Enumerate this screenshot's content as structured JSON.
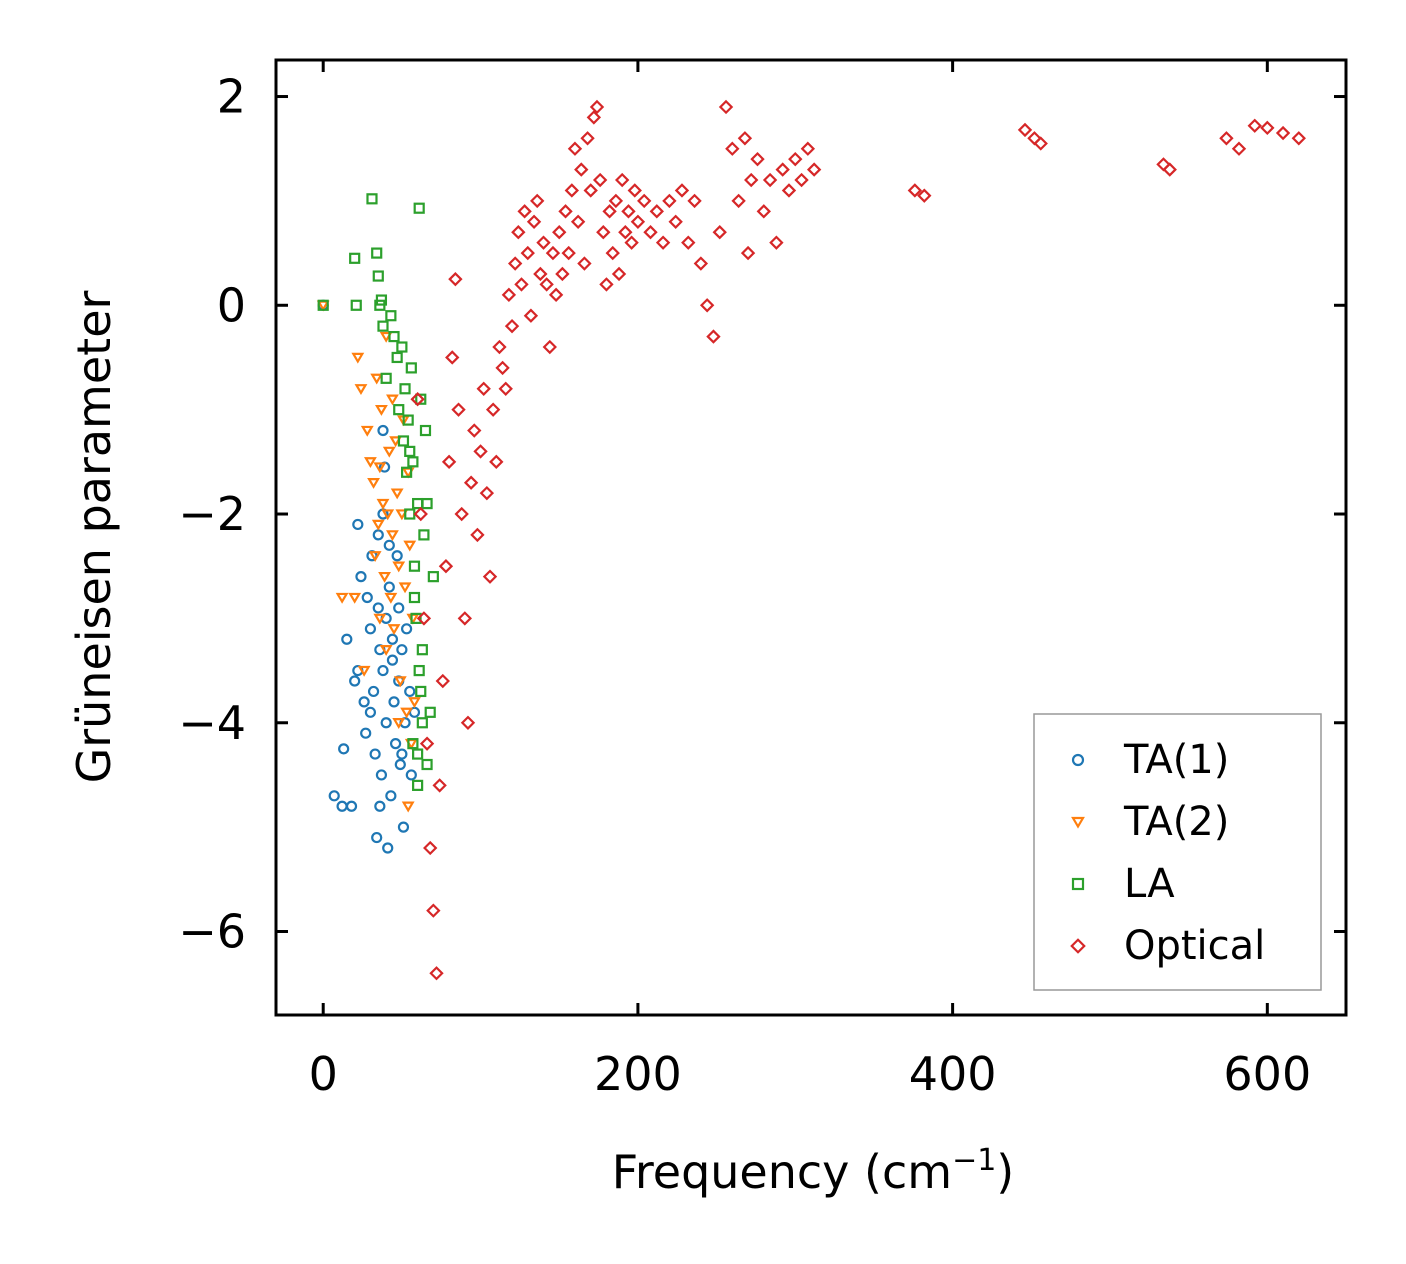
{
  "chart_data": {
    "type": "scatter",
    "title": "",
    "xlabel": "Frequency (cm",
    "xlabel_sup": "−1",
    "xlabel_close": ")",
    "ylabel": "Grüneisen parameter",
    "xlim": [
      -30,
      650
    ],
    "ylim": [
      -6.8,
      2.35
    ],
    "xticks": [
      0,
      200,
      400,
      600
    ],
    "yticks": [
      2,
      0,
      -2,
      -4,
      -6
    ],
    "xtick_labels": [
      "0",
      "200",
      "400",
      "600"
    ],
    "ytick_labels": [
      "2",
      "0",
      "−2",
      "−4",
      "−6"
    ],
    "legend_position": "lower-right",
    "series": [
      {
        "name": "TA(1)",
        "label": "TA(1)",
        "marker": "circle",
        "color": "#1f77b4",
        "points": [
          [
            0,
            0
          ],
          [
            7,
            -4.7
          ],
          [
            12,
            -4.8
          ],
          [
            13,
            -4.25
          ],
          [
            15,
            -3.2
          ],
          [
            18,
            -4.8
          ],
          [
            20,
            -3.6
          ],
          [
            22,
            -2.1
          ],
          [
            22,
            -3.5
          ],
          [
            24,
            -2.6
          ],
          [
            26,
            -3.8
          ],
          [
            27,
            -4.1
          ],
          [
            28,
            -2.8
          ],
          [
            30,
            -3.9
          ],
          [
            30,
            -3.1
          ],
          [
            31,
            -2.4
          ],
          [
            32,
            -3.7
          ],
          [
            33,
            -4.3
          ],
          [
            34,
            -5.1
          ],
          [
            35,
            -2.9
          ],
          [
            36,
            -3.3
          ],
          [
            37,
            -4.5
          ],
          [
            38,
            -3.5
          ],
          [
            38,
            -2.0
          ],
          [
            39,
            -1.55
          ],
          [
            40,
            -4.0
          ],
          [
            40,
            -3.0
          ],
          [
            41,
            -5.2
          ],
          [
            42,
            -2.7
          ],
          [
            43,
            -4.7
          ],
          [
            44,
            -3.4
          ],
          [
            45,
            -3.8
          ],
          [
            46,
            -4.2
          ],
          [
            47,
            -2.4
          ],
          [
            48,
            -3.6
          ],
          [
            49,
            -4.4
          ],
          [
            50,
            -3.3
          ],
          [
            51,
            -5.0
          ],
          [
            52,
            -4.0
          ],
          [
            53,
            -3.1
          ],
          [
            55,
            -3.7
          ],
          [
            56,
            -4.5
          ],
          [
            58,
            -3.9
          ],
          [
            38,
            -1.2
          ],
          [
            35,
            -2.2
          ],
          [
            42,
            -2.3
          ],
          [
            44,
            -3.2
          ],
          [
            48,
            -2.9
          ],
          [
            36,
            -4.8
          ],
          [
            50,
            -4.3
          ]
        ]
      },
      {
        "name": "TA(2)",
        "label": "TA(2)",
        "marker": "triangle",
        "color": "#ff7f0e",
        "points": [
          [
            0,
            0
          ],
          [
            12,
            -2.8
          ],
          [
            20,
            -2.8
          ],
          [
            22,
            -0.5
          ],
          [
            24,
            -0.8
          ],
          [
            26,
            -3.5
          ],
          [
            28,
            -1.2
          ],
          [
            30,
            -1.5
          ],
          [
            32,
            -1.7
          ],
          [
            33,
            -2.4
          ],
          [
            34,
            -0.7
          ],
          [
            35,
            -2.1
          ],
          [
            36,
            -3.0
          ],
          [
            37,
            -1.0
          ],
          [
            38,
            -1.9
          ],
          [
            39,
            -2.6
          ],
          [
            40,
            -3.3
          ],
          [
            41,
            -2.0
          ],
          [
            42,
            -1.4
          ],
          [
            43,
            -2.8
          ],
          [
            44,
            -2.2
          ],
          [
            45,
            -3.1
          ],
          [
            46,
            -1.3
          ],
          [
            47,
            -1.8
          ],
          [
            48,
            -2.5
          ],
          [
            49,
            -3.6
          ],
          [
            50,
            -2.0
          ],
          [
            51,
            -1.1
          ],
          [
            52,
            -2.7
          ],
          [
            53,
            -3.9
          ],
          [
            54,
            -1.6
          ],
          [
            55,
            -2.3
          ],
          [
            56,
            -4.2
          ],
          [
            57,
            -3.0
          ],
          [
            58,
            -3.8
          ],
          [
            40,
            -0.3
          ],
          [
            44,
            -0.9
          ],
          [
            54,
            -4.8
          ],
          [
            36,
            -1.55
          ],
          [
            48,
            -4.0
          ]
        ]
      },
      {
        "name": "LA",
        "label": "LA",
        "marker": "square",
        "color": "#2ca02c",
        "points": [
          [
            0,
            0
          ],
          [
            20,
            0.45
          ],
          [
            21,
            0
          ],
          [
            31,
            1.02
          ],
          [
            34,
            0.5
          ],
          [
            35,
            0.28
          ],
          [
            36,
            0
          ],
          [
            37,
            0.05
          ],
          [
            38,
            -0.2
          ],
          [
            40,
            -0.7
          ],
          [
            43,
            -0.1
          ],
          [
            45,
            -0.3
          ],
          [
            47,
            -0.5
          ],
          [
            48,
            -1.0
          ],
          [
            50,
            -0.4
          ],
          [
            51,
            -1.3
          ],
          [
            52,
            -0.8
          ],
          [
            53,
            -1.6
          ],
          [
            54,
            -1.1
          ],
          [
            55,
            -2.0
          ],
          [
            56,
            -0.6
          ],
          [
            57,
            -1.5
          ],
          [
            58,
            -2.5
          ],
          [
            59,
            -3.0
          ],
          [
            60,
            -1.9
          ],
          [
            61,
            -3.5
          ],
          [
            62,
            -0.9
          ],
          [
            63,
            -4.0
          ],
          [
            64,
            -2.2
          ],
          [
            65,
            -1.2
          ],
          [
            60,
            -4.3
          ],
          [
            62,
            -3.7
          ],
          [
            66,
            -4.4
          ],
          [
            60,
            -4.6
          ],
          [
            61,
            0.93
          ],
          [
            58,
            -2.8
          ],
          [
            63,
            -3.3
          ],
          [
            55,
            -1.4
          ],
          [
            66,
            -1.9
          ],
          [
            70,
            -2.6
          ],
          [
            68,
            -3.9
          ],
          [
            57,
            -4.2
          ]
        ]
      },
      {
        "name": "Optical",
        "label": "Optical",
        "marker": "diamond",
        "color": "#d62728",
        "points": [
          [
            60,
            -0.9
          ],
          [
            62,
            -2.0
          ],
          [
            64,
            -3.0
          ],
          [
            66,
            -4.2
          ],
          [
            68,
            -5.2
          ],
          [
            70,
            -5.8
          ],
          [
            72,
            -6.4
          ],
          [
            74,
            -4.6
          ],
          [
            76,
            -3.6
          ],
          [
            78,
            -2.5
          ],
          [
            80,
            -1.5
          ],
          [
            82,
            -0.5
          ],
          [
            84,
            0.25
          ],
          [
            86,
            -1.0
          ],
          [
            88,
            -2.0
          ],
          [
            90,
            -3.0
          ],
          [
            92,
            -4.0
          ],
          [
            94,
            -1.7
          ],
          [
            96,
            -1.2
          ],
          [
            98,
            -2.2
          ],
          [
            100,
            -1.4
          ],
          [
            102,
            -0.8
          ],
          [
            104,
            -1.8
          ],
          [
            106,
            -2.6
          ],
          [
            108,
            -1.0
          ],
          [
            110,
            -1.5
          ],
          [
            112,
            -0.4
          ],
          [
            114,
            -0.6
          ],
          [
            116,
            -0.8
          ],
          [
            118,
            0.1
          ],
          [
            120,
            -0.2
          ],
          [
            122,
            0.4
          ],
          [
            124,
            0.7
          ],
          [
            126,
            0.2
          ],
          [
            128,
            0.9
          ],
          [
            130,
            0.5
          ],
          [
            132,
            -0.1
          ],
          [
            134,
            0.8
          ],
          [
            136,
            1.0
          ],
          [
            138,
            0.3
          ],
          [
            140,
            0.6
          ],
          [
            142,
            0.2
          ],
          [
            144,
            -0.4
          ],
          [
            146,
            0.5
          ],
          [
            148,
            0.1
          ],
          [
            150,
            0.7
          ],
          [
            152,
            0.3
          ],
          [
            154,
            0.9
          ],
          [
            156,
            0.5
          ],
          [
            158,
            1.1
          ],
          [
            160,
            1.5
          ],
          [
            162,
            0.8
          ],
          [
            164,
            1.3
          ],
          [
            166,
            0.4
          ],
          [
            168,
            1.6
          ],
          [
            170,
            1.1
          ],
          [
            172,
            1.8
          ],
          [
            174,
            1.9
          ],
          [
            176,
            1.2
          ],
          [
            178,
            0.7
          ],
          [
            180,
            0.2
          ],
          [
            182,
            0.9
          ],
          [
            184,
            0.5
          ],
          [
            186,
            1.0
          ],
          [
            188,
            0.3
          ],
          [
            190,
            1.2
          ],
          [
            192,
            0.7
          ],
          [
            194,
            0.9
          ],
          [
            196,
            0.6
          ],
          [
            198,
            1.1
          ],
          [
            200,
            0.8
          ],
          [
            204,
            1.0
          ],
          [
            208,
            0.7
          ],
          [
            212,
            0.9
          ],
          [
            216,
            0.6
          ],
          [
            220,
            1.0
          ],
          [
            224,
            0.8
          ],
          [
            228,
            1.1
          ],
          [
            232,
            0.6
          ],
          [
            236,
            1.0
          ],
          [
            240,
            0.4
          ],
          [
            244,
            0.0
          ],
          [
            248,
            -0.3
          ],
          [
            252,
            0.7
          ],
          [
            256,
            1.9
          ],
          [
            260,
            1.5
          ],
          [
            264,
            1.0
          ],
          [
            268,
            1.6
          ],
          [
            270,
            0.5
          ],
          [
            272,
            1.2
          ],
          [
            276,
            1.4
          ],
          [
            280,
            0.9
          ],
          [
            284,
            1.2
          ],
          [
            288,
            0.6
          ],
          [
            292,
            1.3
          ],
          [
            296,
            1.1
          ],
          [
            300,
            1.4
          ],
          [
            304,
            1.2
          ],
          [
            308,
            1.5
          ],
          [
            312,
            1.3
          ],
          [
            376,
            1.1
          ],
          [
            382,
            1.05
          ],
          [
            446,
            1.68
          ],
          [
            452,
            1.6
          ],
          [
            456,
            1.55
          ],
          [
            534,
            1.35
          ],
          [
            538,
            1.3
          ],
          [
            574,
            1.6
          ],
          [
            582,
            1.5
          ],
          [
            592,
            1.72
          ],
          [
            600,
            1.7
          ],
          [
            610,
            1.65
          ],
          [
            620,
            1.6
          ]
        ]
      }
    ]
  },
  "legend": {
    "items": [
      {
        "label": "TA(1)"
      },
      {
        "label": "TA(2)"
      },
      {
        "label": "LA"
      },
      {
        "label": "Optical"
      }
    ]
  }
}
